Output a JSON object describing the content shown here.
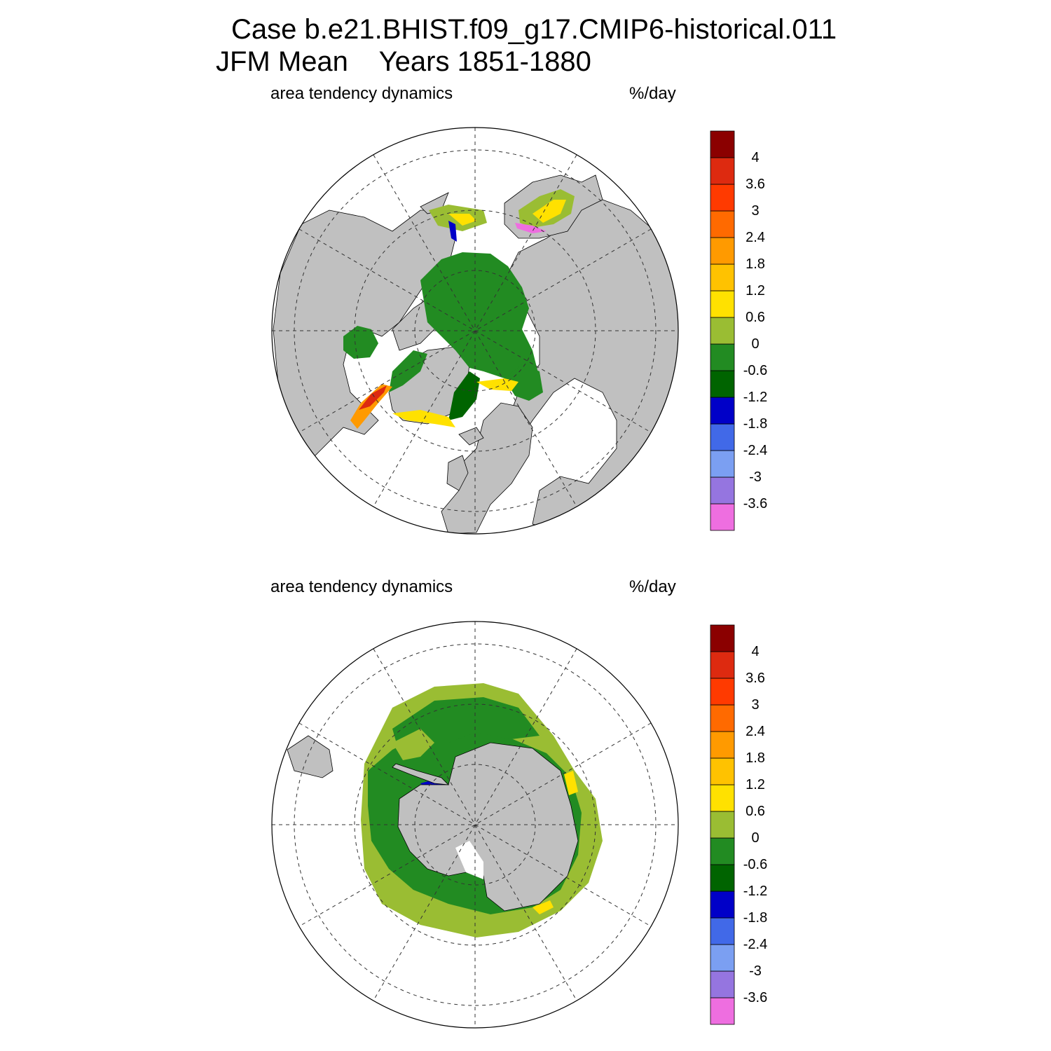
{
  "title": {
    "line1": "Case b.e21.BHIST.f09_g17.CMIP6-historical.011",
    "line2": "JFM Mean    Years 1851-1880"
  },
  "panels": [
    {
      "id": "north",
      "label_left": "area tendency dynamics",
      "label_right": "%/day"
    },
    {
      "id": "south",
      "label_left": "area tendency dynamics",
      "label_right": "%/day"
    }
  ],
  "colorbar": {
    "colors": [
      "#ee6ee0",
      "#9575e0",
      "#7b9ff2",
      "#4169e8",
      "#0000c8",
      "#006400",
      "#228b22",
      "#9abd33",
      "#ffe100",
      "#ffc200",
      "#ff9a00",
      "#ff6a00",
      "#ff3a00",
      "#dd2a10",
      "#8b0000"
    ],
    "tick_labels": [
      "-3.6",
      "-3",
      "-2.4",
      "-1.8",
      "-1.2",
      "-0.6",
      "0",
      "0.6",
      "1.2",
      "1.8",
      "2.4",
      "3",
      "3.6",
      "4"
    ]
  },
  "map_colors": {
    "land": "#c0c0c0",
    "ocean": "#ffffff",
    "ice_neg": "#228b22",
    "ice_pos": "#9abd33",
    "ice_dark": "#006400",
    "edge_blue": "#0000c8",
    "edge_pink": "#ee6ee0",
    "hot_yellow": "#ffe100",
    "hot_orange": "#ff9a00",
    "hot_red": "#dd2a10"
  }
}
